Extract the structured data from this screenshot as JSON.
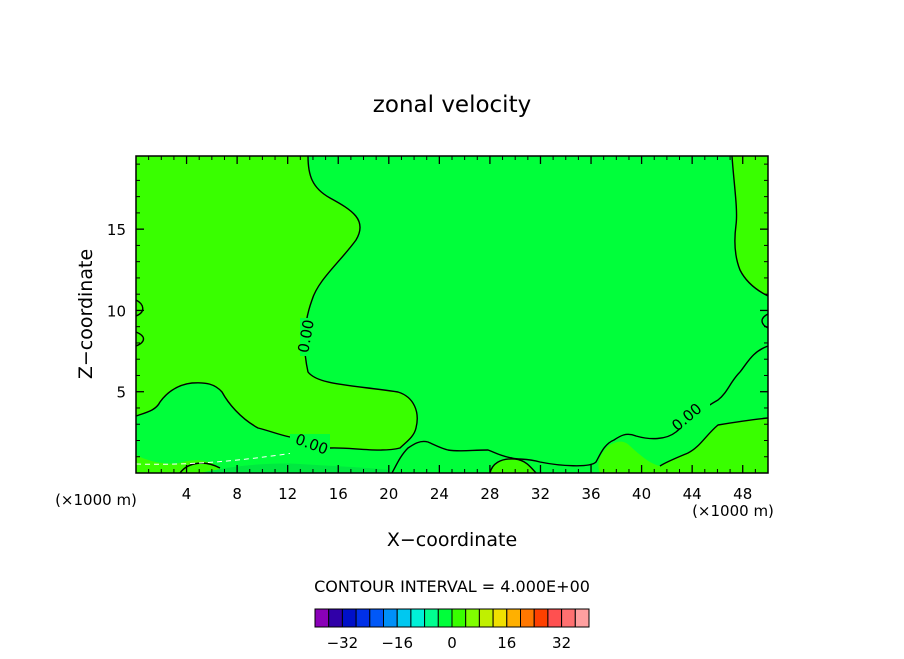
{
  "chart_data": {
    "type": "heatmap",
    "title": "zonal velocity",
    "xlabel": "X−coordinate",
    "ylabel": "Z−coordinate",
    "x_unit_left": "(×1000 m)",
    "x_unit_right": "(×1000 m)",
    "xlim": [
      0,
      50
    ],
    "ylim": [
      0,
      19.5
    ],
    "x_ticks": [
      4,
      8,
      12,
      16,
      20,
      24,
      28,
      32,
      36,
      40,
      44,
      48
    ],
    "y_ticks": [
      5,
      10,
      15
    ],
    "contour_interval_text": "CONTOUR INTERVAL = 4.000E+00",
    "contour_labels": [
      "0.00",
      "0.00",
      "0.00"
    ],
    "regions": {
      "positive_band": {
        "level": 2,
        "color": "#39ff00"
      },
      "zero_band": {
        "level": -2,
        "color": "#00ff3a"
      }
    },
    "colorbar": {
      "colors": [
        "#8a00b8",
        "#3000a8",
        "#0010c8",
        "#0030e8",
        "#0058f8",
        "#0090f8",
        "#00c8f0",
        "#00f0d8",
        "#00ff90",
        "#00ff3a",
        "#39ff00",
        "#80ff00",
        "#c0f000",
        "#f0e000",
        "#ffb000",
        "#ff7800",
        "#ff4000",
        "#ff5050",
        "#ff7070",
        "#ffa0a0"
      ],
      "tick_labels": [
        "−32",
        "−16",
        "0",
        "16",
        "32"
      ],
      "tick_values": [
        -32,
        -16,
        0,
        16,
        32
      ],
      "min": -40,
      "max": 40
    }
  }
}
